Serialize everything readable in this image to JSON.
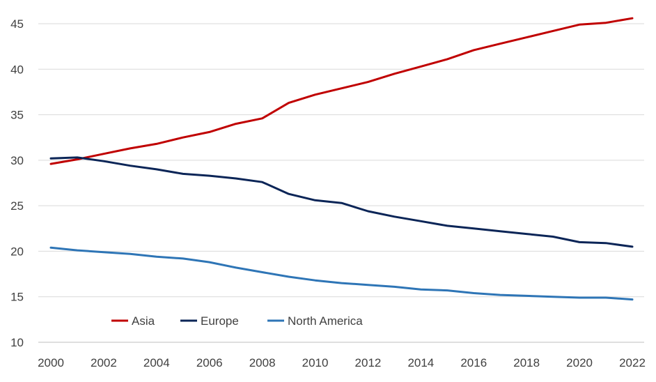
{
  "chart_data": {
    "type": "line",
    "title": "",
    "xlabel": "",
    "ylabel": "",
    "x": [
      2000,
      2001,
      2002,
      2003,
      2004,
      2005,
      2006,
      2007,
      2008,
      2009,
      2010,
      2011,
      2012,
      2013,
      2014,
      2015,
      2016,
      2017,
      2018,
      2019,
      2020,
      2021,
      2022
    ],
    "xticks": [
      "2000",
      "2002",
      "2004",
      "2006",
      "2008",
      "2010",
      "2012",
      "2014",
      "2016",
      "2018",
      "2020",
      "2022"
    ],
    "ylim": [
      10,
      45
    ],
    "yticks": [
      "10",
      "15",
      "20",
      "25",
      "30",
      "35",
      "40",
      "45"
    ],
    "grid": "horizontal",
    "legend_position": "bottom-left",
    "series": [
      {
        "name": "Asia",
        "color": "#c00000",
        "values": [
          29.6,
          30.1,
          30.7,
          31.3,
          31.8,
          32.5,
          33.1,
          34.0,
          34.6,
          36.3,
          37.2,
          37.9,
          38.6,
          39.5,
          40.3,
          41.1,
          42.1,
          42.8,
          43.5,
          44.2,
          44.9,
          45.1,
          45.6
        ]
      },
      {
        "name": "Europe",
        "color": "#0b2557",
        "values": [
          30.2,
          30.3,
          29.9,
          29.4,
          29.0,
          28.5,
          28.3,
          28.0,
          27.6,
          26.3,
          25.6,
          25.3,
          24.4,
          23.8,
          23.3,
          22.8,
          22.5,
          22.2,
          21.9,
          21.6,
          21.0,
          20.9,
          20.5
        ]
      },
      {
        "name": "North America",
        "color": "#2e75b6",
        "values": [
          20.4,
          20.1,
          19.9,
          19.7,
          19.4,
          19.2,
          18.8,
          18.2,
          17.7,
          17.2,
          16.8,
          16.5,
          16.3,
          16.1,
          15.8,
          15.7,
          15.4,
          15.2,
          15.1,
          15.0,
          14.9,
          14.9,
          14.7
        ]
      }
    ]
  }
}
